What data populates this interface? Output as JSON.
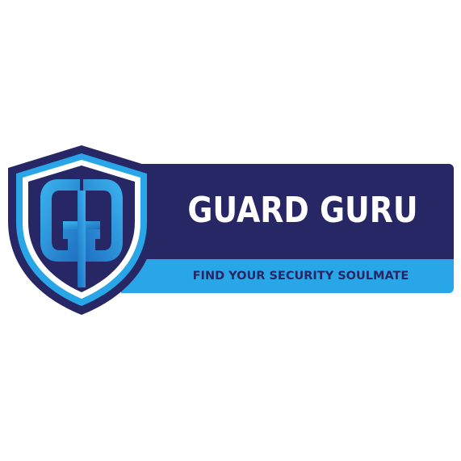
{
  "logo": {
    "brand_name": "GUARD GURU",
    "tagline": "FIND YOUR SECURITY SOULMATE",
    "emblem_icon": "shield-gg-icon",
    "colors": {
      "navy": "#272766",
      "light_blue": "#29a6e8",
      "white": "#ffffff"
    }
  }
}
